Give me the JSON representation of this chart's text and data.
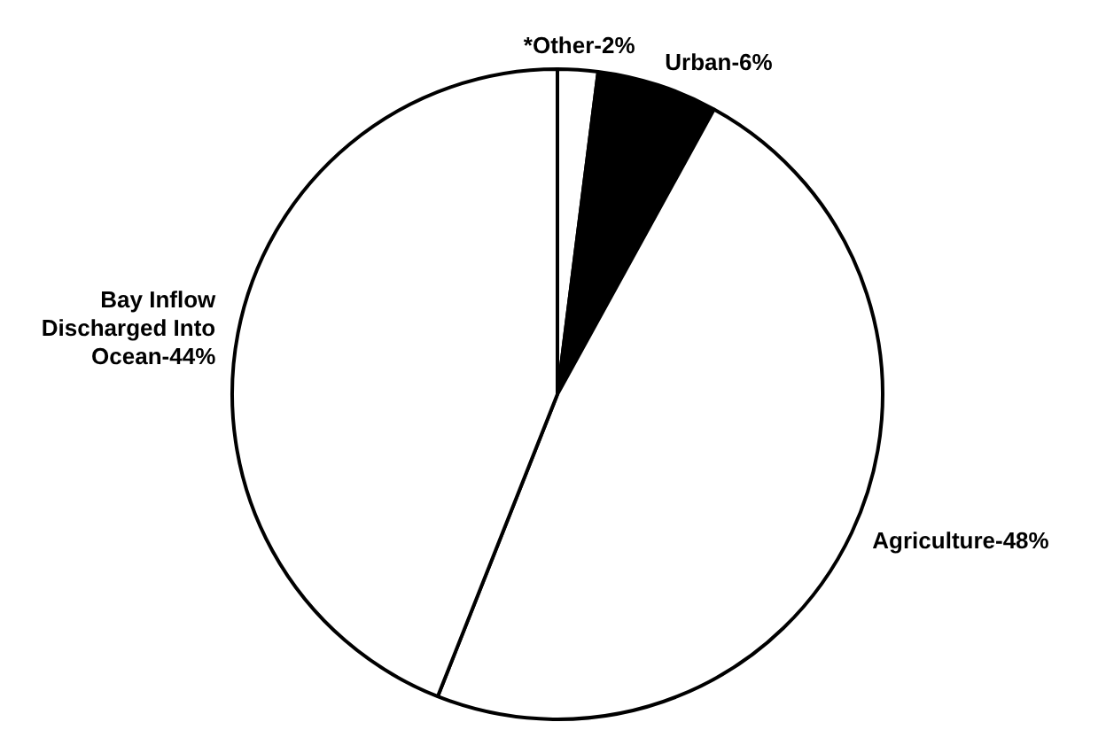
{
  "chart_data": {
    "type": "pie",
    "categories": [
      "*Other-2%",
      "Urban-6%",
      "Agriculture-48%",
      "Bay Inflow Discharged Into Ocean-44%"
    ],
    "values": [
      2,
      6,
      48,
      44
    ],
    "colors": [
      "#ffffff",
      "#000000",
      "#ffffff",
      "#ffffff"
    ],
    "legend": false
  }
}
